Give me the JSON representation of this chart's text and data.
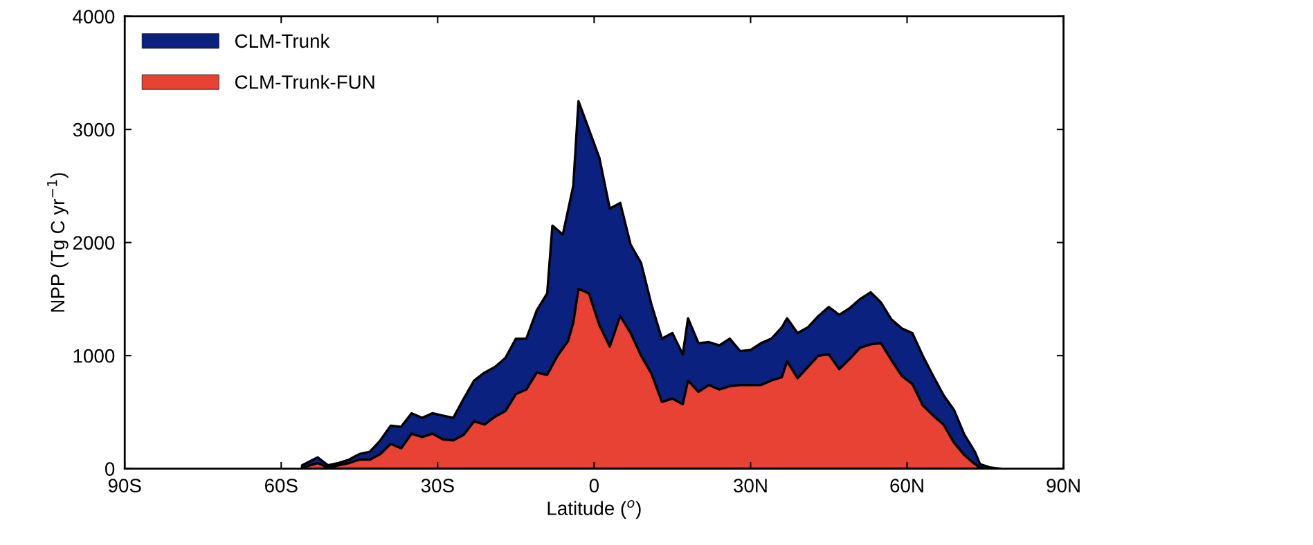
{
  "chart_data": {
    "type": "area",
    "xlabel": "Latitude ($^{o}$)",
    "ylabel": "NPP (Tg C yr$^{−1}$)",
    "xlim": [
      -90,
      90
    ],
    "xticks": [
      {
        "value": -90,
        "label": "90S"
      },
      {
        "value": -60,
        "label": "60S"
      },
      {
        "value": -30,
        "label": "30S"
      },
      0,
      {
        "value": 30,
        "label": "30N"
      },
      {
        "value": 60,
        "label": "60N"
      },
      {
        "value": 90,
        "label": "90N"
      }
    ],
    "ylim": [
      0,
      4000
    ],
    "yticks": [
      0,
      1000,
      2000,
      3000,
      4000
    ],
    "grid": false,
    "legend": "top left",
    "series": [
      {
        "name": "CLM-Trunk",
        "color": "#0b2180",
        "x": [
          -56,
          -53,
          -51,
          -49,
          -47,
          -45,
          -43,
          -41,
          -39,
          -37,
          -35,
          -33,
          -31,
          -29,
          -27,
          -25,
          -23,
          -21,
          -19,
          -17,
          -15,
          -13,
          -11,
          -9,
          -8,
          -6,
          -4,
          -3,
          -1,
          1,
          3,
          5,
          7,
          9,
          11,
          13,
          15,
          17,
          18,
          20,
          22,
          24,
          26,
          28,
          30,
          32,
          34,
          36,
          37,
          39,
          41,
          43,
          45,
          47,
          49,
          51,
          53,
          55,
          57,
          59,
          61,
          63,
          65,
          67,
          69,
          71,
          73,
          74,
          76,
          78
        ],
        "values": [
          30,
          100,
          30,
          50,
          80,
          130,
          150,
          250,
          380,
          370,
          490,
          450,
          490,
          470,
          450,
          620,
          780,
          850,
          900,
          980,
          1150,
          1150,
          1400,
          1550,
          2150,
          2070,
          2500,
          3250,
          3000,
          2750,
          2300,
          2350,
          1980,
          1820,
          1450,
          1150,
          1200,
          1010,
          1330,
          1110,
          1120,
          1090,
          1150,
          1040,
          1050,
          1110,
          1150,
          1250,
          1330,
          1200,
          1250,
          1350,
          1430,
          1360,
          1420,
          1500,
          1560,
          1470,
          1320,
          1240,
          1200,
          1000,
          820,
          650,
          520,
          300,
          150,
          40,
          10,
          0
        ]
      },
      {
        "name": "CLM-Trunk-FUN",
        "color": "#e84234",
        "x": [
          -56,
          -53,
          -51,
          -49,
          -47,
          -45,
          -43,
          -41,
          -39,
          -37,
          -35,
          -33,
          -31,
          -29,
          -27,
          -25,
          -23,
          -21,
          -19,
          -17,
          -15,
          -13,
          -11,
          -9,
          -7,
          -5,
          -4,
          -3,
          -1,
          1,
          3,
          5,
          7,
          9,
          11,
          13,
          15,
          17,
          18,
          20,
          22,
          24,
          26,
          28,
          30,
          32,
          34,
          36,
          37,
          39,
          41,
          43,
          45,
          47,
          49,
          51,
          53,
          55,
          57,
          59,
          61,
          63,
          65,
          67,
          69,
          71,
          73,
          74,
          76
        ],
        "values": [
          10,
          50,
          10,
          30,
          50,
          80,
          80,
          130,
          220,
          180,
          310,
          280,
          310,
          260,
          250,
          300,
          420,
          390,
          460,
          510,
          660,
          700,
          850,
          830,
          1000,
          1130,
          1290,
          1590,
          1550,
          1270,
          1080,
          1350,
          1200,
          1000,
          840,
          590,
          620,
          570,
          780,
          680,
          740,
          700,
          730,
          740,
          740,
          740,
          780,
          810,
          950,
          800,
          900,
          1000,
          1010,
          880,
          970,
          1070,
          1100,
          1110,
          960,
          820,
          750,
          560,
          470,
          390,
          230,
          120,
          40,
          10,
          0
        ]
      }
    ]
  }
}
